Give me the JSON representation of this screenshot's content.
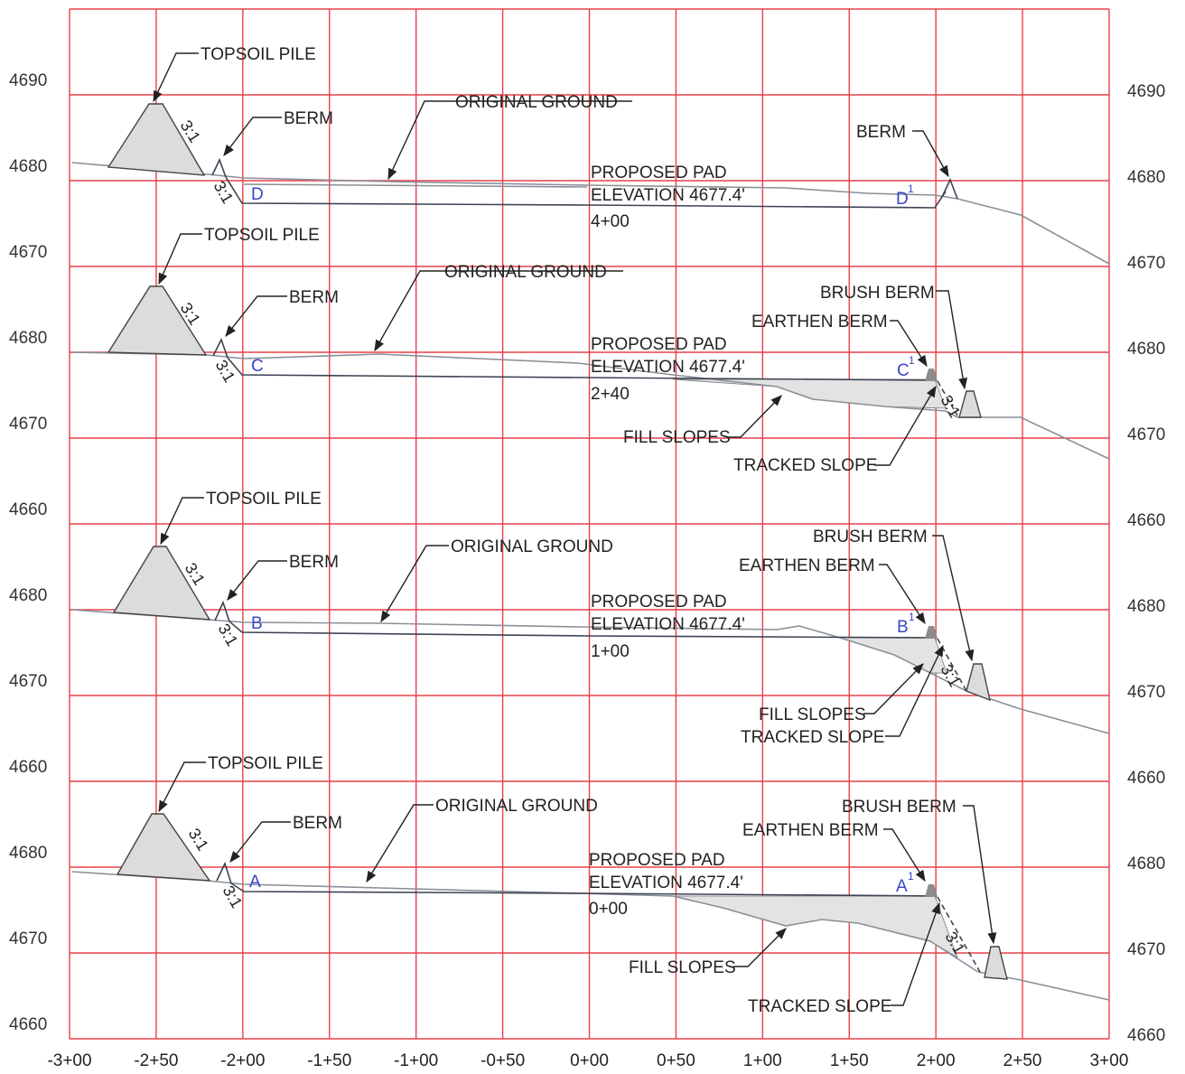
{
  "grid": {
    "stations": [
      "-3+00",
      "-2+50",
      "-2+00",
      "-1+50",
      "-1+00",
      "-0+50",
      "0+00",
      "0+50",
      "1+00",
      "1+50",
      "2+00",
      "2+50",
      "3+00"
    ],
    "left_elevations": [
      "4690",
      "4680",
      "4670",
      "4680",
      "4670",
      "4660",
      "4680",
      "4670",
      "4660",
      "4680",
      "4670",
      "4660"
    ],
    "right_elevations": [
      "4690",
      "4680",
      "4670",
      "4680",
      "4670",
      "4660",
      "4680",
      "4670",
      "4660",
      "4680",
      "4670",
      "4660"
    ]
  },
  "sections": [
    {
      "id": "D",
      "topsoil_label": "TOPSOIL PILE",
      "berm_label": "BERM",
      "original_ground_label": "ORIGINAL GROUND",
      "pad_label_line1": "PROPOSED PAD",
      "pad_label_line2": "ELEVATION 4677.4'",
      "station_label": "4+00",
      "point_left": "D",
      "point_right": "D",
      "point_right_sup": "1",
      "slope_pile": "3:1",
      "slope_cut": "3:1",
      "right_berm_label": "BERM"
    },
    {
      "id": "C",
      "topsoil_label": "TOPSOIL PILE",
      "berm_label": "BERM",
      "original_ground_label": "ORIGINAL GROUND",
      "pad_label_line1": "PROPOSED PAD",
      "pad_label_line2": "ELEVATION 4677.4'",
      "station_label": "2+40",
      "point_left": "C",
      "point_right": "C",
      "point_right_sup": "1",
      "slope_pile": "3:1",
      "slope_cut": "3:1",
      "slope_fill": "3:1",
      "brush_berm_label": "BRUSH BERM",
      "earthen_berm_label": "EARTHEN BERM",
      "fill_slopes_label": "FILL SLOPES",
      "tracked_slope_label": "TRACKED SLOPE"
    },
    {
      "id": "B",
      "topsoil_label": "TOPSOIL PILE",
      "berm_label": "BERM",
      "original_ground_label": "ORIGINAL GROUND",
      "pad_label_line1": "PROPOSED PAD",
      "pad_label_line2": "ELEVATION 4677.4'",
      "station_label": "1+00",
      "point_left": "B",
      "point_right": "B",
      "point_right_sup": "1",
      "slope_pile": "3:1",
      "slope_cut": "3:1",
      "slope_fill": "3:1",
      "brush_berm_label": "BRUSH BERM",
      "earthen_berm_label": "EARTHEN BERM",
      "fill_slopes_label": "FILL SLOPES",
      "tracked_slope_label": "TRACKED SLOPE"
    },
    {
      "id": "A",
      "topsoil_label": "TOPSOIL PILE",
      "berm_label": "BERM",
      "original_ground_label": "ORIGINAL GROUND",
      "pad_label_line1": "PROPOSED PAD",
      "pad_label_line2": "ELEVATION 4677.4'",
      "station_label": "0+00",
      "point_left": "A",
      "point_right": "A",
      "point_right_sup": "1",
      "slope_pile": "3:1",
      "slope_cut": "3:1",
      "slope_fill": "3:1",
      "brush_berm_label": "BRUSH BERM",
      "earthen_berm_label": "EARTHEN BERM",
      "fill_slopes_label": "FILL SLOPES",
      "tracked_slope_label": "TRACKED SLOPE"
    }
  ],
  "colors": {
    "grid": "#e8404a",
    "original_ground": "#8a8f98",
    "pad": "#3c4452",
    "point_labels": "#3a45c8"
  }
}
